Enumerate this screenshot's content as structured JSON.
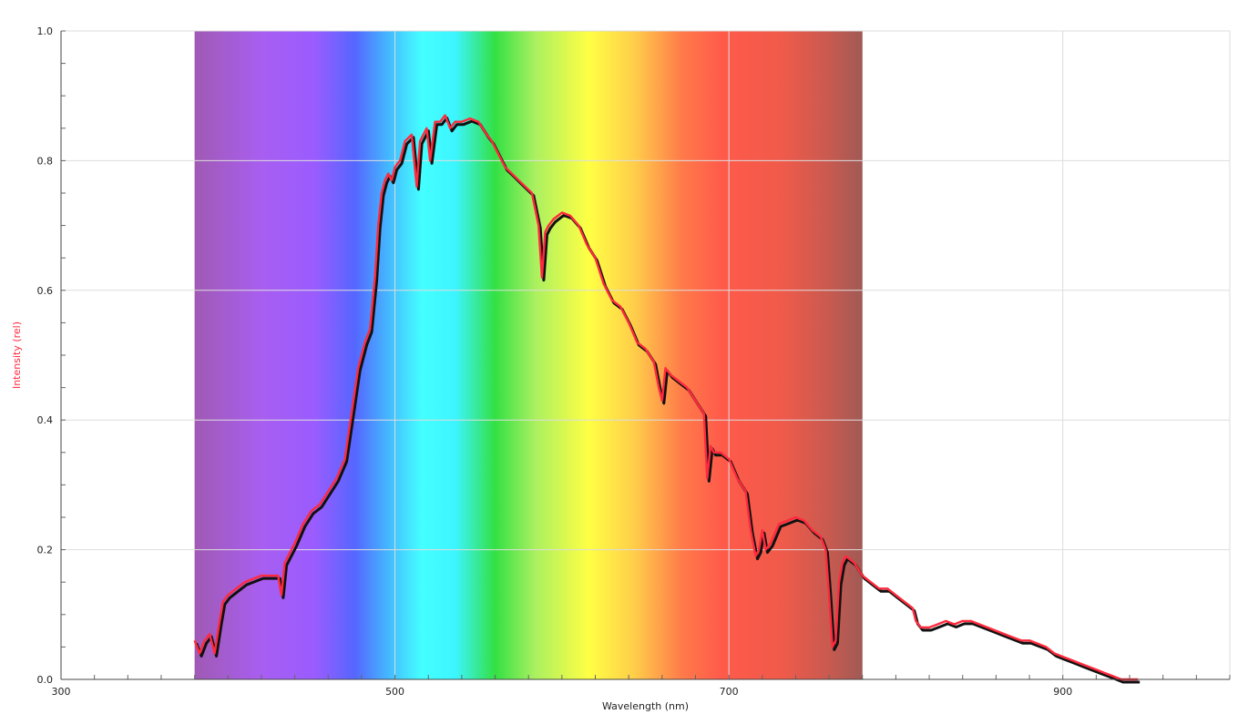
{
  "chart_data": {
    "type": "line",
    "title": "",
    "xlabel": "Wavelength (nm)",
    "ylabel": "Intensity (rel)",
    "xlim": [
      300,
      1000
    ],
    "ylim": [
      0,
      1.0
    ],
    "x_ticks": [
      300,
      500,
      700,
      900
    ],
    "y_ticks": [
      0.0,
      0.2,
      0.4,
      0.6,
      0.8,
      1.0
    ],
    "grid": true,
    "legend": "none",
    "visible_spectrum_band": [
      380,
      780
    ],
    "colors": {
      "series_main": "#ff2a3d",
      "series_shadow": "#111111",
      "ylabel": "#ff2a3d",
      "grid": "#dddddd"
    },
    "series": [
      {
        "x": [
          380,
          383,
          386,
          389,
          392,
          395,
          397,
          400,
          405,
          410,
          415,
          420,
          425,
          430,
          432,
          434,
          436,
          440,
          445,
          450,
          455,
          460,
          465,
          470,
          474,
          478,
          482,
          485,
          488,
          490,
          492,
          494,
          496,
          498,
          500,
          503,
          506,
          510,
          513,
          515,
          517,
          519,
          521,
          524,
          527,
          530,
          533,
          536,
          540,
          545,
          550,
          555,
          558,
          562,
          566,
          570,
          574,
          578,
          582,
          586,
          588,
          590,
          592,
          595,
          600,
          605,
          610,
          615,
          620,
          625,
          630,
          635,
          640,
          645,
          650,
          655,
          658,
          660,
          662,
          665,
          670,
          675,
          680,
          685,
          687,
          689,
          691,
          695,
          700,
          705,
          710,
          713,
          716,
          718,
          720,
          722,
          725,
          730,
          735,
          740,
          745,
          750,
          755,
          758,
          760,
          762,
          764,
          766,
          768,
          770,
          775,
          780,
          785,
          790,
          795,
          800,
          805,
          810,
          812,
          815,
          820,
          825,
          830,
          835,
          840,
          845,
          850,
          855,
          860,
          865,
          870,
          875,
          880,
          885,
          890,
          895,
          900,
          905,
          910,
          915,
          920,
          925,
          930,
          935,
          940,
          945
        ],
        "y": [
          0.06,
          0.04,
          0.06,
          0.07,
          0.04,
          0.09,
          0.12,
          0.13,
          0.14,
          0.15,
          0.155,
          0.16,
          0.16,
          0.16,
          0.13,
          0.18,
          0.19,
          0.21,
          0.24,
          0.26,
          0.27,
          0.29,
          0.31,
          0.34,
          0.41,
          0.48,
          0.52,
          0.54,
          0.62,
          0.7,
          0.75,
          0.77,
          0.78,
          0.77,
          0.79,
          0.8,
          0.83,
          0.84,
          0.76,
          0.83,
          0.84,
          0.85,
          0.8,
          0.86,
          0.86,
          0.87,
          0.85,
          0.86,
          0.86,
          0.865,
          0.86,
          0.84,
          0.83,
          0.81,
          0.79,
          0.78,
          0.77,
          0.76,
          0.75,
          0.7,
          0.62,
          0.69,
          0.7,
          0.71,
          0.72,
          0.715,
          0.7,
          0.67,
          0.65,
          0.61,
          0.585,
          0.575,
          0.55,
          0.52,
          0.51,
          0.49,
          0.45,
          0.43,
          0.48,
          0.47,
          0.46,
          0.45,
          0.43,
          0.41,
          0.31,
          0.36,
          0.35,
          0.35,
          0.34,
          0.31,
          0.29,
          0.23,
          0.19,
          0.2,
          0.23,
          0.2,
          0.21,
          0.24,
          0.245,
          0.25,
          0.245,
          0.23,
          0.22,
          0.2,
          0.13,
          0.05,
          0.06,
          0.15,
          0.18,
          0.19,
          0.18,
          0.16,
          0.15,
          0.14,
          0.14,
          0.13,
          0.12,
          0.11,
          0.09,
          0.08,
          0.08,
          0.085,
          0.09,
          0.085,
          0.09,
          0.09,
          0.085,
          0.08,
          0.075,
          0.07,
          0.065,
          0.06,
          0.06,
          0.055,
          0.05,
          0.04,
          0.035,
          0.03,
          0.025,
          0.02,
          0.015,
          0.01,
          0.005,
          0.0,
          0.0,
          0.0
        ]
      }
    ]
  }
}
